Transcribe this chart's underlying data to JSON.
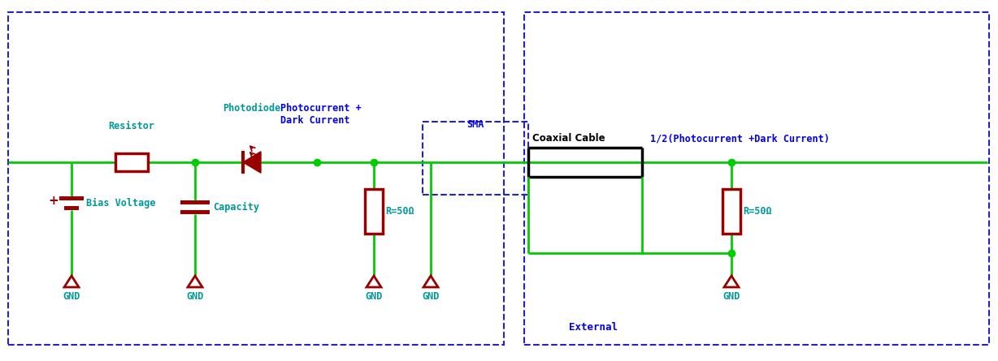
{
  "fig_width": 12.28,
  "fig_height": 4.45,
  "dpi": 100,
  "bg_color": "#ffffff",
  "green_wire": "#00cc00",
  "dark_red": "#990000",
  "teal": "#009999",
  "blue_label": "#0000ee",
  "blue_dashed": "#2222cc",
  "black": "#000000",
  "labels": {
    "resistor": "Resistor",
    "photodiode": "Photodiode",
    "bias_voltage": "Bias Voltage",
    "capacity": "Capacity",
    "photocurrent": "Photocurrent +\nDark Current",
    "sma": "SMA",
    "coaxial": "Coaxial Cable",
    "half_photo": "1/2(Photocurrent +Dark Current)",
    "r50_1": "R=50Ω",
    "r50_2": "R=50Ω",
    "gnd": "GND",
    "external": "External"
  }
}
